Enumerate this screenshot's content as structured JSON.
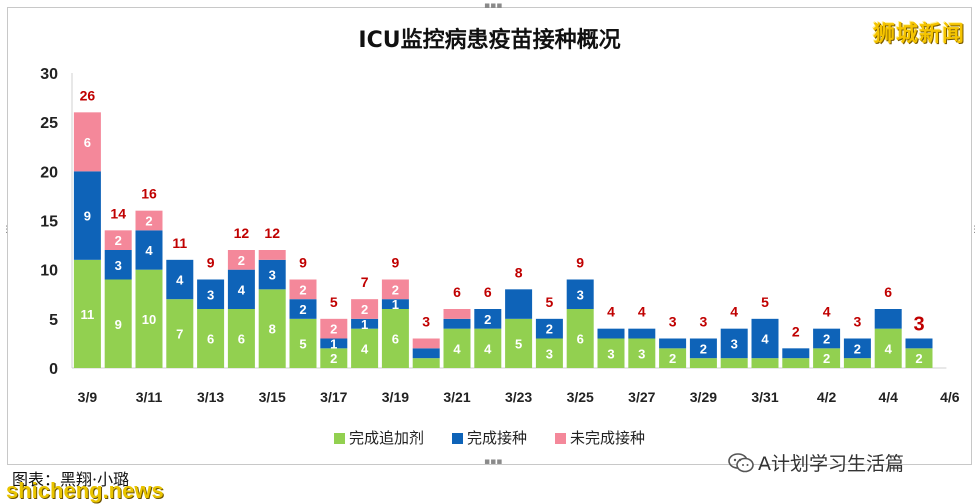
{
  "header": {
    "title": "ICU监控病患疫苗接种概况",
    "brand": "狮城新闻"
  },
  "footer": {
    "caption": "图表：黑翔·小璐",
    "site": "shicheng.news",
    "wechat_account": "A计划学习生活篇"
  },
  "chart_data": {
    "type": "bar",
    "stacked": true,
    "title": "ICU监控病患疫苗接种概况",
    "categories": [
      "3/9",
      "3/10",
      "3/11",
      "3/12",
      "3/13",
      "3/14",
      "3/15",
      "3/16",
      "3/17",
      "3/18",
      "3/19",
      "3/20",
      "3/21",
      "3/22",
      "3/23",
      "3/24",
      "3/25",
      "3/26",
      "3/27",
      "3/28",
      "3/29",
      "3/30",
      "3/31",
      "4/1",
      "4/2",
      "4/3",
      "4/4",
      "4/5"
    ],
    "x_tick_labels": [
      "3/9",
      "3/11",
      "3/13",
      "3/15",
      "3/17",
      "3/19",
      "3/21",
      "3/23",
      "3/25",
      "3/27",
      "3/29",
      "3/31",
      "4/2",
      "4/4",
      "4/6"
    ],
    "ylim": [
      0,
      30
    ],
    "yticks": [
      0,
      5,
      10,
      15,
      20,
      25,
      30
    ],
    "grid": false,
    "legend_position": "bottom",
    "series": [
      {
        "name": "完成追加剂",
        "color": "#92d050",
        "values": [
          11,
          9,
          10,
          7,
          6,
          6,
          8,
          5,
          2,
          4,
          6,
          1,
          4,
          4,
          5,
          3,
          6,
          3,
          3,
          2,
          1,
          1,
          1,
          1,
          2,
          1,
          4,
          2
        ],
        "labels": [
          11,
          9,
          10,
          7,
          6,
          6,
          8,
          5,
          2,
          4,
          6,
          null,
          4,
          4,
          5,
          3,
          6,
          3,
          3,
          2,
          null,
          null,
          null,
          null,
          2,
          null,
          4,
          2
        ]
      },
      {
        "name": "完成接种",
        "color": "#0e63b8",
        "values": [
          9,
          3,
          4,
          4,
          3,
          4,
          3,
          2,
          1,
          1,
          1,
          1,
          1,
          2,
          3,
          2,
          3,
          1,
          1,
          1,
          2,
          3,
          4,
          1,
          2,
          2,
          2,
          1
        ],
        "labels": [
          9,
          3,
          4,
          4,
          3,
          4,
          3,
          2,
          1,
          1,
          1,
          null,
          null,
          2,
          null,
          2,
          3,
          null,
          null,
          null,
          2,
          3,
          4,
          null,
          2,
          2,
          null,
          null
        ]
      },
      {
        "name": "未完成接种",
        "color": "#f4889a",
        "values": [
          6,
          2,
          2,
          0,
          0,
          2,
          1,
          2,
          2,
          2,
          2,
          1,
          1,
          0,
          0,
          0,
          0,
          0,
          0,
          0,
          0,
          0,
          0,
          0,
          0,
          0,
          0,
          0
        ],
        "labels": [
          6,
          2,
          2,
          null,
          null,
          2,
          null,
          2,
          2,
          2,
          2,
          null,
          null,
          null,
          null,
          null,
          null,
          null,
          null,
          null,
          null,
          null,
          null,
          null,
          null,
          null,
          null,
          null
        ]
      }
    ],
    "totals": [
      26,
      14,
      16,
      11,
      9,
      12,
      12,
      9,
      5,
      7,
      9,
      3,
      6,
      6,
      8,
      5,
      9,
      4,
      4,
      3,
      3,
      4,
      5,
      2,
      4,
      3,
      6,
      3
    ],
    "total_label_color": "#c00000",
    "highlight_last_total": true
  }
}
